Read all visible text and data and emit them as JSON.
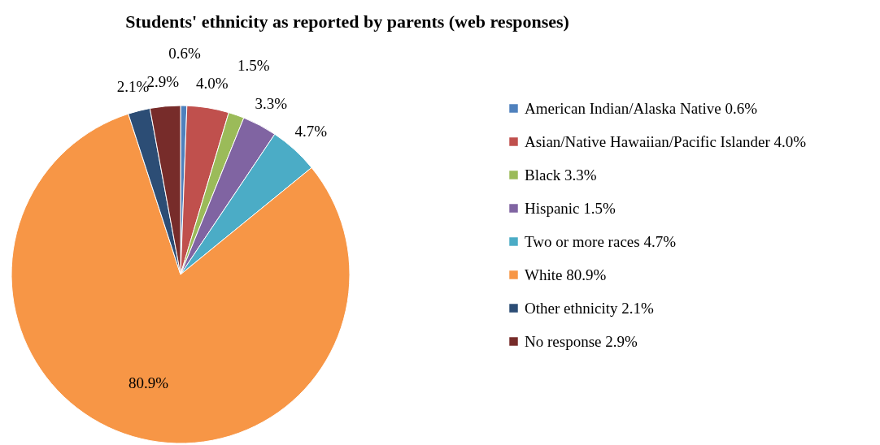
{
  "chart_data": {
    "type": "pie",
    "title": "Students' ethnicity as reported by parents (web responses)",
    "categories": [
      "American Indian/Alaska Native 0.6%",
      "Asian/Native Hawaiian/Pacific Islander 4.0%",
      "Black 3.3%",
      "Hispanic 1.5%",
      "Two or more races 4.7%",
      "White 80.9%",
      "Other ethnicity 2.1%",
      "No response 2.9%"
    ],
    "values": [
      0.6,
      4.0,
      1.5,
      3.3,
      4.7,
      80.9,
      2.1,
      2.9
    ],
    "value_labels": [
      "0.6%",
      "4.0%",
      "1.5%",
      "3.3%",
      "4.7%",
      "80.9%",
      "2.1%",
      "2.9%"
    ],
    "colors": [
      "#4f81bd",
      "#c0504d",
      "#9bbb59",
      "#8064a2",
      "#4bacc6",
      "#f79646",
      "#2c4d75",
      "#772c2a"
    ],
    "legend": "right"
  }
}
